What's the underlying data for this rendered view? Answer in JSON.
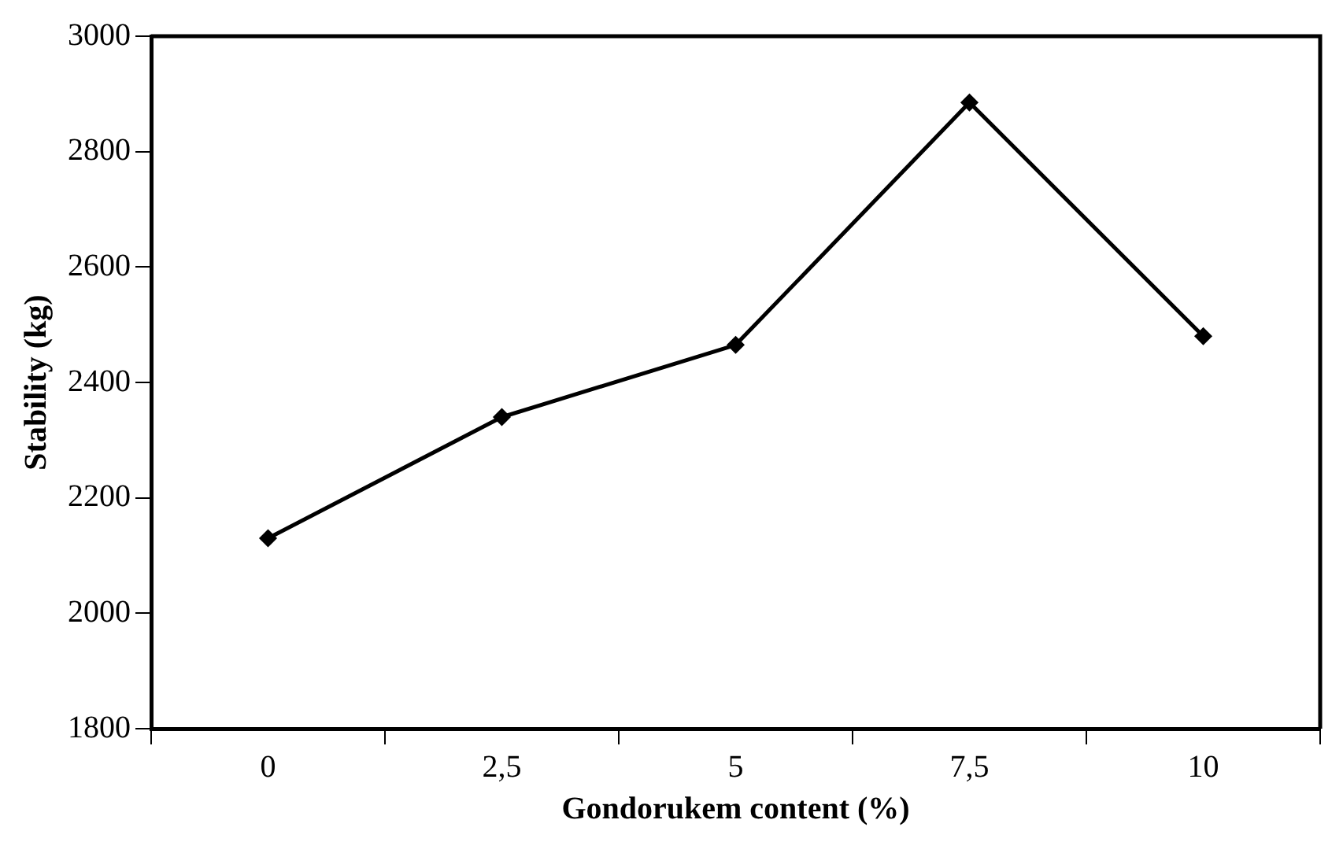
{
  "chart_data": {
    "type": "line",
    "xlabel": "Gondorukem content (%)",
    "ylabel": "Stability (kg)",
    "categories": [
      "0",
      "2,5",
      "5",
      "7,5",
      "10"
    ],
    "series": [
      {
        "color": "#000000",
        "values": [
          2130,
          2340,
          2465,
          2885,
          2480
        ]
      }
    ],
    "ylim": [
      1800,
      3000
    ],
    "yticks": [
      1800,
      2000,
      2200,
      2400,
      2600,
      2800,
      3000
    ],
    "grid": false,
    "legend": false,
    "marker": "diamond",
    "line_style": "solid"
  }
}
